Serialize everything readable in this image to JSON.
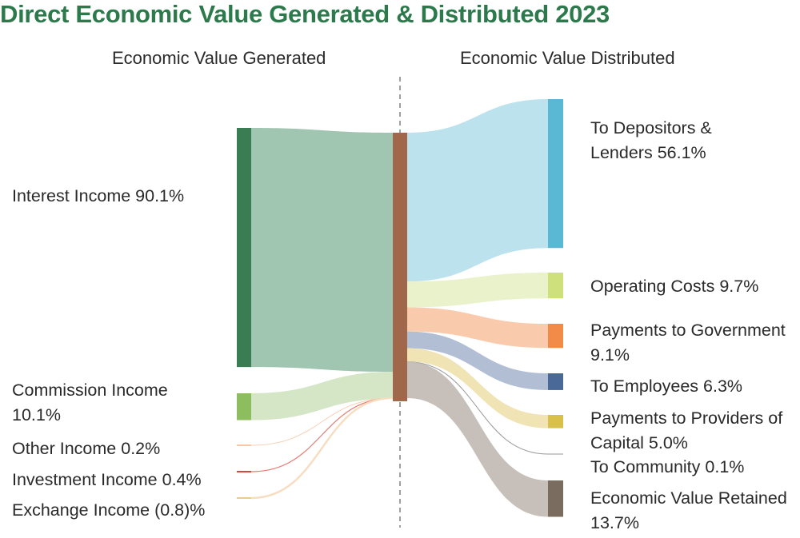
{
  "title": "Direct Economic Value Generated & Distributed 2023",
  "colors": {
    "title": "#2c7a4b",
    "divider": "#888888",
    "hub": "#a0674b"
  },
  "chart_data": {
    "type": "sankey",
    "title": "Direct Economic Value Generated & Distributed 2023",
    "left_header": "Economic Value Generated",
    "right_header": "Economic Value Distributed",
    "unit": "%",
    "sources": [
      {
        "label": "Interest Income",
        "value_text": "90.1%",
        "value": 90.1,
        "color": "#3b7d52",
        "flow_color": "#9bc2ad"
      },
      {
        "label": "Commission Income",
        "value_text": "10.1%",
        "value": 10.1,
        "color": "#8dbd5e",
        "flow_color": "#d3e5c4"
      },
      {
        "label": "Other Income",
        "value_text": "0.2%",
        "value": 0.2,
        "color": "#f5c9a8",
        "flow_color": "#f7cfb4"
      },
      {
        "label": "Investment Income",
        "value_text": "0.4%",
        "value": 0.4,
        "color": "#d9463c",
        "flow_color": "#e67c74"
      },
      {
        "label": "Exchange Income",
        "value_text": "(0.8)%",
        "value": -0.8,
        "color": "#efc985",
        "flow_color": "#f7dcc0"
      }
    ],
    "targets": [
      {
        "label": "To Depositors & Lenders",
        "value_text": "56.1%",
        "value": 56.1,
        "color": "#5bb8d4",
        "flow_color": "#b7e0ec"
      },
      {
        "label": "Operating Costs",
        "value_text": "9.7%",
        "value": 9.7,
        "color": "#cde07c",
        "flow_color": "#e9f1c8"
      },
      {
        "label": "Payments to Government",
        "value_text": "9.1%",
        "value": 9.1,
        "color": "#f28a48",
        "flow_color": "#f9c8a8"
      },
      {
        "label": "To Employees",
        "value_text": "6.3%",
        "value": 6.3,
        "color": "#4a6898",
        "flow_color": "#aebad1"
      },
      {
        "label": "Payments to Providers of Capital",
        "value_text": "5.0%",
        "value": 5.0,
        "color": "#d9c04a",
        "flow_color": "#efe1b0"
      },
      {
        "label": "To Community",
        "value_text": "0.1%",
        "value": 0.1,
        "color": "#9a9a9a",
        "flow_color": "#9a9a9a"
      },
      {
        "label": "Economic Value Retained",
        "value_text": "13.7%",
        "value": 13.7,
        "color": "#7a6d60",
        "flow_color": "#c4bdb6"
      }
    ]
  }
}
